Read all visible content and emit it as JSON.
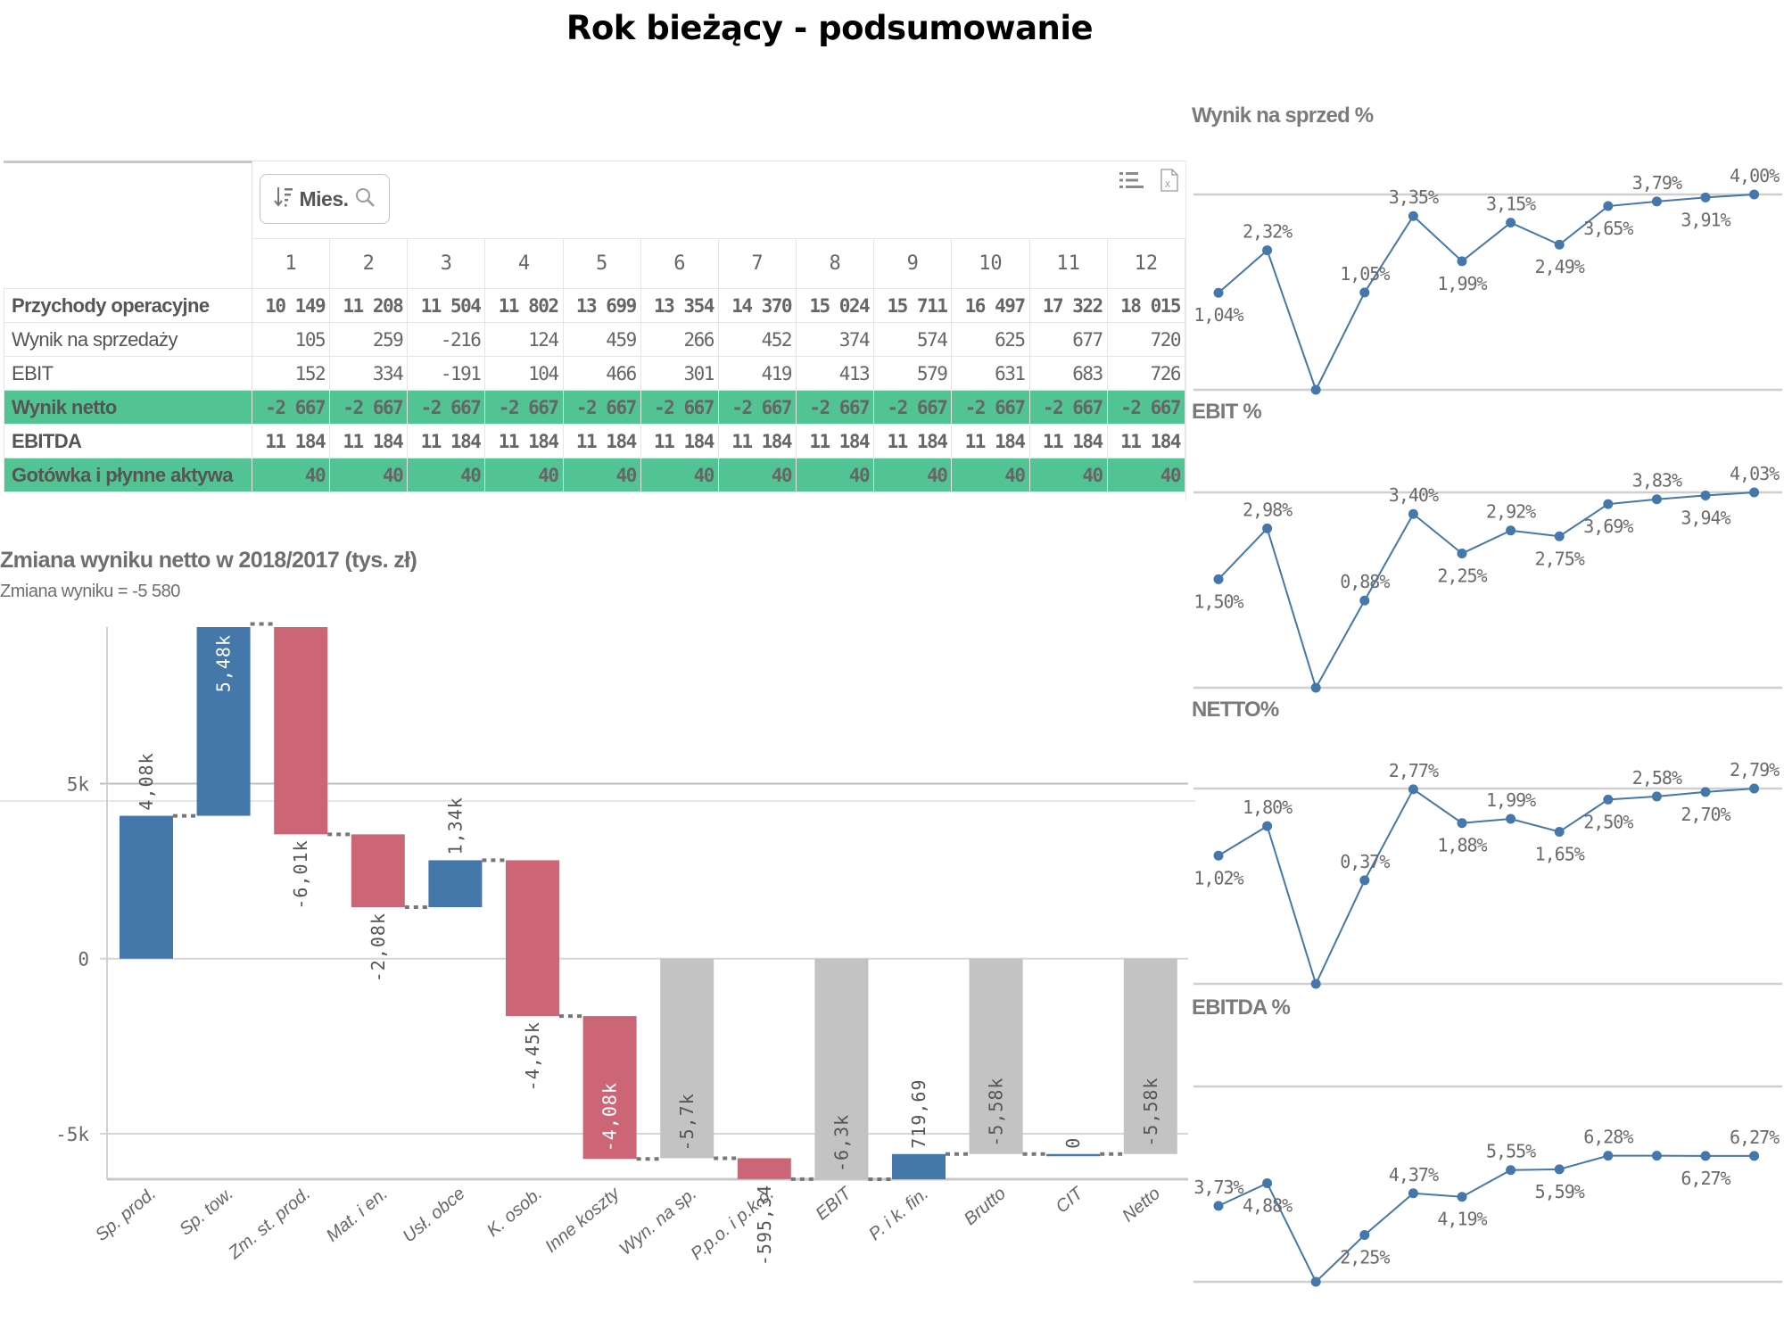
{
  "page": {
    "title": "Rok bieżący - podsumowanie"
  },
  "table": {
    "sort_button_label": "Mies.",
    "icons": [
      "sort-icon",
      "search-icon",
      "list-menu-icon",
      "export-xlsx-icon"
    ],
    "columns": [
      "1",
      "2",
      "3",
      "4",
      "5",
      "6",
      "7",
      "8",
      "9",
      "10",
      "11",
      "12"
    ],
    "rows": [
      {
        "label": "Przychody operacyjne",
        "style": "bold",
        "values": [
          "10 149",
          "11 208",
          "11 504",
          "11 802",
          "13 699",
          "13 354",
          "14 370",
          "15 024",
          "15 711",
          "16 497",
          "17 322",
          "18 015"
        ]
      },
      {
        "label": "Wynik na sprzedaży",
        "style": "normal",
        "values": [
          "105",
          "259",
          "-216",
          "124",
          "459",
          "266",
          "452",
          "374",
          "574",
          "625",
          "677",
          "720"
        ]
      },
      {
        "label": "EBIT",
        "style": "normal",
        "values": [
          "152",
          "334",
          "-191",
          "104",
          "466",
          "301",
          "419",
          "413",
          "579",
          "631",
          "683",
          "726"
        ]
      },
      {
        "label": "Wynik netto",
        "style": "green",
        "values": [
          "-2 667",
          "-2 667",
          "-2 667",
          "-2 667",
          "-2 667",
          "-2 667",
          "-2 667",
          "-2 667",
          "-2 667",
          "-2 667",
          "-2 667",
          "-2 667"
        ]
      },
      {
        "label": "EBITDA",
        "style": "bold",
        "values": [
          "11 184",
          "11 184",
          "11 184",
          "11 184",
          "11 184",
          "11 184",
          "11 184",
          "11 184",
          "11 184",
          "11 184",
          "11 184",
          "11 184"
        ]
      },
      {
        "label": "Gotówka i płynne aktywa",
        "style": "green",
        "values": [
          "40",
          "40",
          "40",
          "40",
          "40",
          "40",
          "40",
          "40",
          "40",
          "40",
          "40",
          "40"
        ]
      }
    ]
  },
  "colors": {
    "positive": "#4477aa",
    "negative": "#cc6677",
    "subtotal": "#c3c3c3",
    "highlight_row": "#52c494",
    "line": "#4477aa"
  },
  "chart_data": [
    {
      "id": "waterfall",
      "type": "bar",
      "subtype": "waterfall",
      "title": "Zmiana wyniku netto w 2018/2017 (tys. zł)",
      "subtitle": "Zmiana wyniku = -5 580",
      "ylim": [
        -6300,
        9470
      ],
      "yticks": [
        {
          "value": 5000,
          "label": "5k"
        },
        {
          "value": 0,
          "label": "0"
        },
        {
          "value": -5000,
          "label": "-5k"
        }
      ],
      "grid": true,
      "categories": [
        "Sp. prod.",
        "Sp. tow.",
        "Zm. st. prod.",
        "Mat. i en.",
        "Usł. obce",
        "K. osob.",
        "Inne koszty",
        "Wyn. na sp.",
        "P.p.o. i p.k.o.",
        "EBIT",
        "P. i k. fin.",
        "Brutto",
        "CIT",
        "Netto"
      ],
      "bars": [
        {
          "kind": "delta",
          "value": 4080,
          "label": "4,08k",
          "label_pos": "outside"
        },
        {
          "kind": "delta",
          "value": 5480,
          "label": "5,48k",
          "label_pos": "inside"
        },
        {
          "kind": "delta",
          "value": -6010,
          "label": "-6,01k",
          "label_pos": "outside"
        },
        {
          "kind": "delta",
          "value": -2080,
          "label": "-2,08k",
          "label_pos": "outside"
        },
        {
          "kind": "delta",
          "value": 1340,
          "label": "1,34k",
          "label_pos": "outside"
        },
        {
          "kind": "delta",
          "value": -4450,
          "label": "-4,45k",
          "label_pos": "outside"
        },
        {
          "kind": "delta",
          "value": -4080,
          "label": "-4,08k",
          "label_pos": "inside"
        },
        {
          "kind": "total",
          "value": -5700,
          "label": "-5,7k",
          "label_pos": "inside"
        },
        {
          "kind": "delta",
          "value": -595.34,
          "label": "-595,34",
          "label_pos": "outside"
        },
        {
          "kind": "total",
          "value": -6300,
          "label": "-6,3k",
          "label_pos": "inside"
        },
        {
          "kind": "delta",
          "value": 719.69,
          "label": "719,69",
          "label_pos": "outside"
        },
        {
          "kind": "total",
          "value": -5580,
          "label": "-5,58k",
          "label_pos": "inside"
        },
        {
          "kind": "delta",
          "value": 0,
          "label": "0",
          "label_pos": "outside"
        },
        {
          "kind": "total",
          "value": -5580,
          "label": "-5,58k",
          "label_pos": "inside"
        }
      ]
    },
    {
      "id": "wynik-sprzed",
      "type": "line",
      "title": "Wynik na sprzed %",
      "x": [
        1,
        2,
        3,
        4,
        5,
        6,
        7,
        8,
        9,
        10,
        11,
        12
      ],
      "ylim": [
        -1.88,
        4.0
      ],
      "values": [
        1.04,
        2.32,
        -1.88,
        1.05,
        3.35,
        1.99,
        3.15,
        2.49,
        3.65,
        3.79,
        3.91,
        4.0
      ],
      "labels": [
        "1,04%",
        "2,32%",
        "",
        "1,05%",
        "3,35%",
        "1,99%",
        "3,15%",
        "2,49%",
        "3,65%",
        "3,79%",
        "3,91%",
        "4,00%"
      ],
      "label_pos": [
        "below",
        "above",
        "none",
        "above",
        "above",
        "below",
        "above",
        "below",
        "below",
        "above",
        "below",
        "above"
      ]
    },
    {
      "id": "ebit",
      "type": "line",
      "title": "EBIT %",
      "x": [
        1,
        2,
        3,
        4,
        5,
        6,
        7,
        8,
        9,
        10,
        11,
        12
      ],
      "ylim": [
        -1.66,
        4.03
      ],
      "values": [
        1.5,
        2.98,
        -1.66,
        0.88,
        3.4,
        2.25,
        2.92,
        2.75,
        3.69,
        3.83,
        3.94,
        4.03
      ],
      "labels": [
        "1,50%",
        "2,98%",
        "",
        "0,88%",
        "3,40%",
        "2,25%",
        "2,92%",
        "2,75%",
        "3,69%",
        "3,83%",
        "3,94%",
        "4,03%"
      ],
      "label_pos": [
        "below",
        "above",
        "none",
        "above",
        "above",
        "below",
        "above",
        "below",
        "below",
        "above",
        "below",
        "above"
      ]
    },
    {
      "id": "netto",
      "type": "line",
      "title": "NETTO%",
      "x": [
        1,
        2,
        3,
        4,
        5,
        6,
        7,
        8,
        9,
        10,
        11,
        12
      ],
      "ylim": [
        -2.36,
        2.79
      ],
      "values": [
        1.02,
        1.8,
        -2.36,
        0.37,
        2.77,
        1.88,
        1.99,
        1.65,
        2.5,
        2.58,
        2.7,
        2.79
      ],
      "labels": [
        "1,02%",
        "1,80%",
        "",
        "0,37%",
        "2,77%",
        "1,88%",
        "1,99%",
        "1,65%",
        "2,50%",
        "2,58%",
        "2,70%",
        "2,79%"
      ],
      "label_pos": [
        "below",
        "above",
        "none",
        "above",
        "above",
        "below",
        "above",
        "below",
        "below",
        "above",
        "below",
        "above"
      ]
    },
    {
      "id": "ebitda",
      "type": "line",
      "title": "EBITDA %",
      "x": [
        1,
        2,
        3,
        4,
        5,
        6,
        7,
        8,
        9,
        10,
        11,
        12
      ],
      "ylim": [
        -0.13,
        9.8
      ],
      "values": [
        3.73,
        4.88,
        -0.13,
        2.25,
        4.37,
        4.19,
        5.55,
        5.59,
        6.28,
        6.28,
        6.27,
        6.27
      ],
      "labels": [
        "3,73%",
        "4,88%",
        "",
        "2,25%",
        "4,37%",
        "4,19%",
        "5,55%",
        "5,59%",
        "6,28%",
        "",
        "6,27%",
        "6,27%"
      ],
      "label_pos": [
        "above",
        "below",
        "none",
        "below",
        "above",
        "below",
        "above",
        "below",
        "above",
        "none",
        "below",
        "above"
      ]
    }
  ]
}
